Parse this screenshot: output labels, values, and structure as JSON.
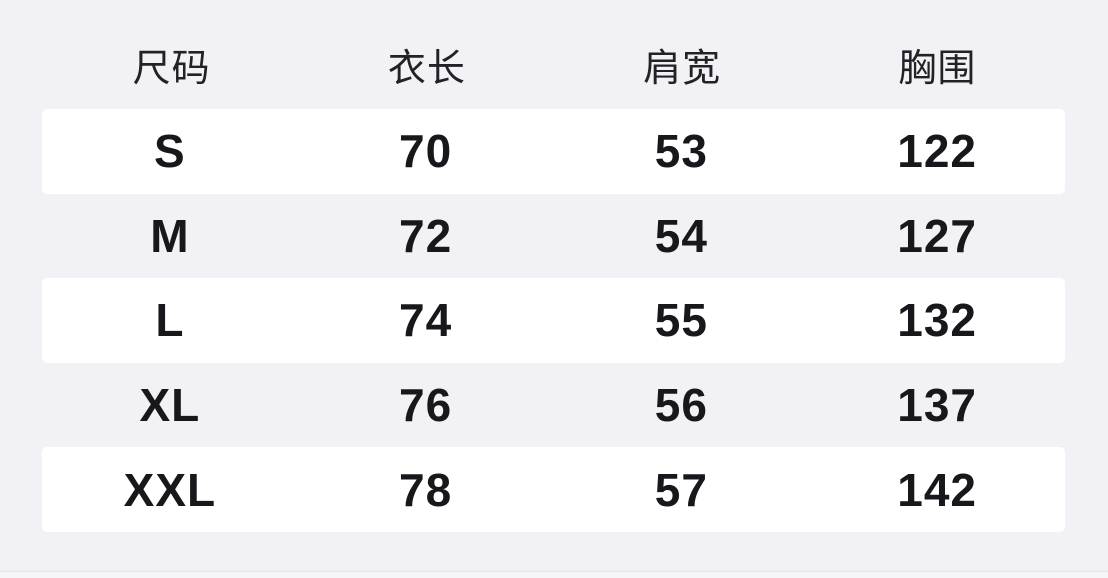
{
  "colors": {
    "page_background": "#f2f2f6",
    "stripe_background": "#ffffff",
    "header_text": "#212126",
    "value_text": "#17171c",
    "bottom_divider": "#e3e3e9"
  },
  "chart_data": {
    "type": "table",
    "columns": [
      "尺码",
      "衣长",
      "肩宽",
      "胸围"
    ],
    "rows": [
      [
        "S",
        "70",
        "53",
        "122"
      ],
      [
        "M",
        "72",
        "54",
        "127"
      ],
      [
        "L",
        "74",
        "55",
        "132"
      ],
      [
        "XL",
        "76",
        "56",
        "137"
      ],
      [
        "XXL",
        "78",
        "57",
        "142"
      ]
    ]
  }
}
